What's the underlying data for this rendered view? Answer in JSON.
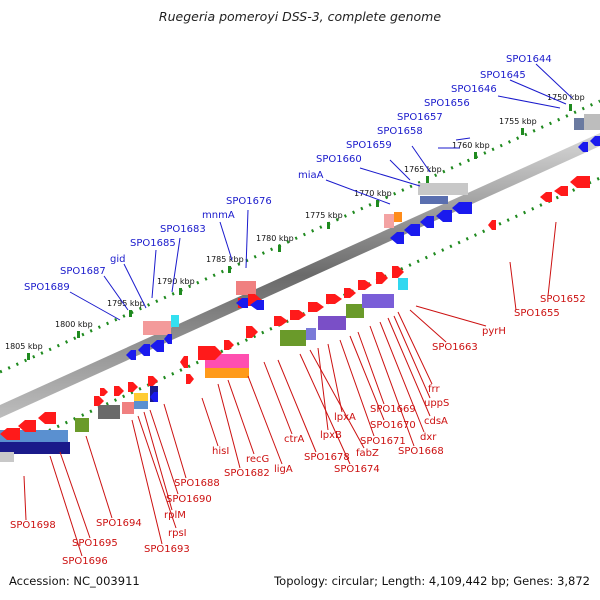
{
  "title": "Ruegeria pomeroyi DSS-3, complete genome",
  "footer": {
    "accession": "Accession: NC_003911",
    "summary": "Topology: circular; Length: 4,109,442 bp; Genes: 3,872"
  },
  "ticks": [
    "1750 kbp",
    "1755 kbp",
    "1760 kbp",
    "1765 kbp",
    "1770 kbp",
    "1775 kbp",
    "1780 kbp",
    "1785 kbp",
    "1790 kbp",
    "1795 kbp",
    "1800 kbp",
    "1805 kbp"
  ],
  "upper_labels": [
    "SPO1644",
    "SPO1645",
    "SPO1646",
    "SPO1656",
    "SPO1657",
    "SPO1658",
    "SPO1659",
    "SPO1660",
    "miaA",
    "SPO1676",
    "mnmA",
    "SPO1683",
    "SPO1685",
    "gid",
    "SPO1687",
    "SPO1689"
  ],
  "lower_labels": [
    "SPO1652",
    "SPO1655",
    "pyrH",
    "SPO1663",
    "frr",
    "uppS",
    "cdsA",
    "dxr",
    "SPO1668",
    "SPO1669",
    "SPO1670",
    "SPO1671",
    "lpxA",
    "lpxB",
    "fabZ",
    "SPO1674",
    "ctrA",
    "SPO1678",
    "ligA",
    "recG",
    "SPO1682",
    "hisI",
    "SPO1688",
    "SPO1690",
    "rplM",
    "rpsI",
    "SPO1693",
    "SPO1694",
    "SPO1695",
    "SPO1696",
    "SPO1698"
  ],
  "colors": {
    "forward_strand": "#ff1a1a",
    "reverse_strand": "#1a1aee",
    "upper_label": "#1a1acc",
    "lower_label": "#cc1111"
  }
}
